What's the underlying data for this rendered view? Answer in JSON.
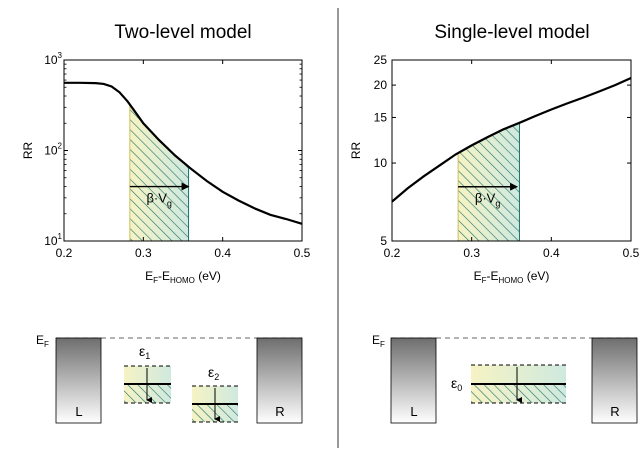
{
  "panels": {
    "left_title": "Two-level model",
    "right_title": "Single-level model"
  },
  "chart_data": [
    {
      "type": "line",
      "title": "Two-level model",
      "xlabel": {
        "main": "E",
        "sub1": "F",
        "mid": "-E",
        "sub2": "HOMO",
        "unit": " (eV)"
      },
      "ylabel": "RR",
      "xlim": [
        0.2,
        0.5
      ],
      "ylim": [
        10,
        1000
      ],
      "yscale": "log",
      "xticks": [
        0.2,
        0.3,
        0.4,
        0.5
      ],
      "xtick_labels": [
        "0.2",
        "0.3",
        "0.4",
        "0.5"
      ],
      "yticks": [
        10,
        100,
        1000
      ],
      "ytick_labels": [
        {
          "base": "10",
          "exp": "1"
        },
        {
          "base": "10",
          "exp": "2"
        },
        {
          "base": "10",
          "exp": "3"
        }
      ],
      "grid": false,
      "series": [
        {
          "x": [
            0.2,
            0.22,
            0.24,
            0.25,
            0.26,
            0.27,
            0.28,
            0.29,
            0.3,
            0.32,
            0.34,
            0.36,
            0.38,
            0.4,
            0.42,
            0.44,
            0.46,
            0.48,
            0.5
          ],
          "y": [
            560,
            560,
            555,
            545,
            510,
            440,
            350,
            265,
            200,
            130,
            88,
            63,
            46,
            35,
            28,
            23,
            19.5,
            17.5,
            15.5
          ]
        }
      ],
      "shaded_region": {
        "x": [
          0.283,
          0.357
        ]
      },
      "arrow": {
        "x": [
          0.283,
          0.357
        ],
        "y": 40,
        "label": "β·V",
        "label_sub": "g"
      }
    },
    {
      "type": "line",
      "title": "Single-level model",
      "xlabel": {
        "main": "E",
        "sub1": "F",
        "mid": "-E",
        "sub2": "HOMO",
        "unit": " (eV)"
      },
      "ylabel": "RR",
      "xlim": [
        0.2,
        0.5
      ],
      "ylim": [
        5,
        25
      ],
      "yscale": "log",
      "xticks": [
        0.2,
        0.3,
        0.4,
        0.5
      ],
      "xtick_labels": [
        "0.2",
        "0.3",
        "0.4",
        "0.5"
      ],
      "yticks": [
        5,
        10,
        15,
        20,
        25
      ],
      "ytick_labels": [
        "5",
        "10",
        "15",
        "20",
        "25"
      ],
      "grid": false,
      "series": [
        {
          "x": [
            0.2,
            0.22,
            0.24,
            0.26,
            0.28,
            0.3,
            0.32,
            0.34,
            0.36,
            0.38,
            0.4,
            0.42,
            0.44,
            0.46,
            0.48,
            0.5
          ],
          "y": [
            7.1,
            8.0,
            8.9,
            9.8,
            10.8,
            11.7,
            12.6,
            13.5,
            14.3,
            15.2,
            16.1,
            17.0,
            17.9,
            18.9,
            20.0,
            21.3
          ]
        }
      ],
      "shaded_region": {
        "x": [
          0.283,
          0.36
        ]
      },
      "arrow": {
        "x": [
          0.283,
          0.357
        ],
        "y": 8.1,
        "label": "β·V",
        "label_sub": "g"
      }
    }
  ],
  "diagrams": {
    "left": {
      "fermi_label": "E",
      "fermi_sub": "F",
      "electrode_left": "L",
      "electrode_right": "R",
      "level1_label": "ε",
      "level1_sub": "1",
      "level2_label": "ε",
      "level2_sub": "2"
    },
    "right": {
      "fermi_label": "E",
      "fermi_sub": "F",
      "electrode_left": "L",
      "electrode_right": "R",
      "level0_label": "ε",
      "level0_sub": "0"
    }
  },
  "colors": {
    "curve": "#000000",
    "hatch_dark": "#1f6f6a",
    "fill_start": "#f6f3c4",
    "fill_end": "#cfe9df",
    "electrode_top": "#6e6e6e",
    "electrode_bottom": "#ffffff",
    "divider": "#333333"
  }
}
